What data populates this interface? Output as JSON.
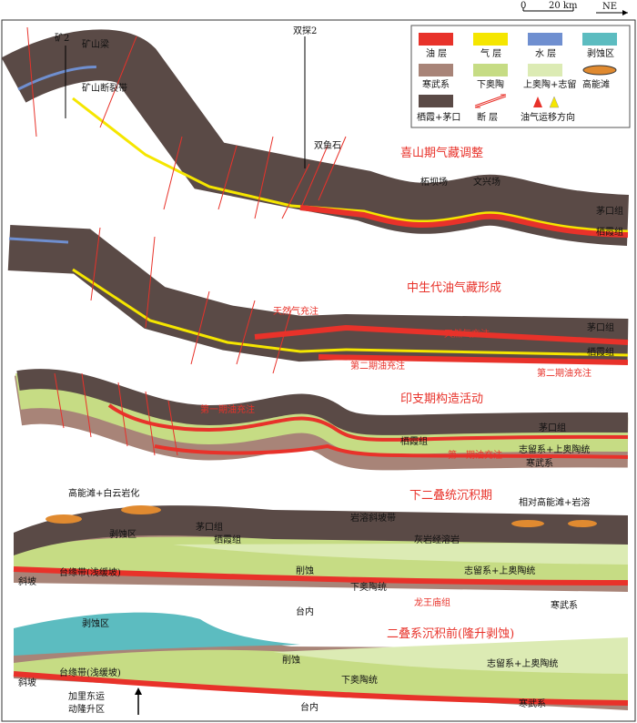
{
  "scale": {
    "zero": "0",
    "length": "20 km",
    "north": "NE"
  },
  "legend": [
    "油 层",
    "气 层",
    "水 层",
    "剥蚀区",
    "寒武系",
    "下奥陶",
    "上奥陶+志留",
    "高能滩",
    "栖霞+茅口",
    "断 层",
    "油气运移方向"
  ],
  "panels": [
    {
      "title": "喜山期气藏调整",
      "labels": [
        "矿2",
        "矿山梁",
        "矿山断裂带",
        "双探2",
        "双鱼石",
        "柘坝场",
        "文兴场",
        "茅口组",
        "栖霞组"
      ]
    },
    {
      "title": "中生代油气藏形成",
      "labels": [
        "天然气充注",
        "天然气充注",
        "茅口组",
        "栖霞组",
        "第二期油充注",
        "第二期油充注"
      ]
    },
    {
      "title": "印支期构造活动",
      "labels": [
        "第一期油充注",
        "第一期油充注",
        "茅口组",
        "栖霞组",
        "志留系+上奥陶统",
        "寒武系"
      ]
    },
    {
      "title": "下二叠统沉积期",
      "labels": [
        "高能滩+白云岩化",
        "岩溶斜坡带",
        "相对高能滩+岩溶",
        "剥蚀区",
        "茅口组",
        "栖霞组",
        "灰岩经溶岩",
        "削蚀",
        "志留系+上奥陶统",
        "下奥陶统",
        "龙王庙组",
        "寒武系",
        "斜坡",
        "台缘带(浅缓坡)",
        "台内"
      ]
    },
    {
      "title": "二叠系沉积前(隆升剥蚀)",
      "labels": [
        "剥蚀区",
        "削蚀",
        "志留系+上奥陶统",
        "下奥陶统",
        "寒武系",
        "斜坡",
        "台缘带(浅缓坡)",
        "台内",
        "加里东运",
        "动隆升区"
      ]
    }
  ]
}
